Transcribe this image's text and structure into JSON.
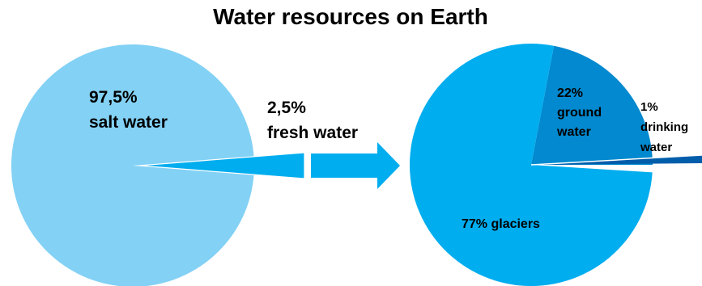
{
  "chart_data": [
    {
      "type": "pie",
      "title": "Water resources on Earth",
      "series": [
        {
          "label": "97,5% salt water",
          "value": 97.5,
          "color": "#83d1f5"
        },
        {
          "label": "2,5% fresh water",
          "value": 2.5,
          "color": "#00adef"
        }
      ],
      "labels": {
        "salt_pct": "97,5%",
        "salt_name": "salt water",
        "fresh_pct": "2,5%",
        "fresh_name": "fresh water"
      }
    },
    {
      "type": "pie",
      "series": [
        {
          "label": "77% glaciers",
          "value": 77,
          "color": "#00adef"
        },
        {
          "label": "22% ground water",
          "value": 22,
          "color": "#0289cf"
        },
        {
          "label": "1% drinking water",
          "value": 1,
          "color": "#005daa"
        }
      ],
      "labels": {
        "glaciers": "77% glaciers",
        "ground_pct": "22%",
        "ground_1": "ground",
        "ground_2": "water",
        "drink_pct": "1%",
        "drink_1": "drinking",
        "drink_2": "water"
      }
    }
  ],
  "arrow_color": "#00adef"
}
